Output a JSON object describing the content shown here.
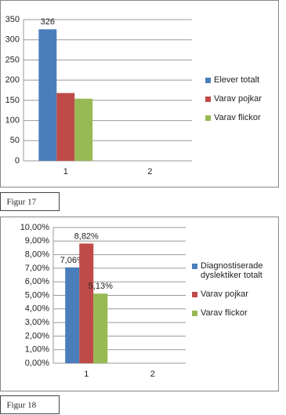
{
  "chart_data": [
    {
      "type": "bar",
      "caption": "Figur 17",
      "categories": [
        "1",
        "2"
      ],
      "series": [
        {
          "name": "Elever totalt",
          "color": "#4a7ebb",
          "values": [
            326,
            null
          ],
          "value_labels": [
            "326",
            null
          ]
        },
        {
          "name": "Varav pojkar",
          "color": "#be4b48",
          "values": [
            168,
            null
          ]
        },
        {
          "name": "Varav flickor",
          "color": "#98b954",
          "values": [
            154,
            null
          ]
        }
      ],
      "ylim": [
        0,
        350
      ],
      "yticks": [
        0,
        50,
        100,
        150,
        200,
        250,
        300,
        350
      ],
      "grid": true
    },
    {
      "type": "bar",
      "caption": "Figur 18",
      "categories": [
        "1",
        "2"
      ],
      "series": [
        {
          "name": "Diagnostiserade dyslektiker  totalt",
          "color": "#4a7ebb",
          "values": [
            7.06,
            null
          ],
          "value_labels": [
            "7,06%",
            null
          ]
        },
        {
          "name": "Varav pojkar",
          "color": "#be4b48",
          "values": [
            8.82,
            null
          ],
          "value_labels": [
            "8,82%",
            null
          ]
        },
        {
          "name": "Varav flickor",
          "color": "#98b954",
          "values": [
            5.13,
            null
          ],
          "value_labels": [
            "5,13%",
            null
          ]
        }
      ],
      "ylim": [
        0,
        10
      ],
      "yticks": [
        {
          "value": 0,
          "label": "0,00%"
        },
        {
          "value": 1,
          "label": "1,00%"
        },
        {
          "value": 2,
          "label": "2,00%"
        },
        {
          "value": 3,
          "label": "3,00%"
        },
        {
          "value": 4,
          "label": "4,00%"
        },
        {
          "value": 5,
          "label": "5,00%"
        },
        {
          "value": 6,
          "label": "6,00%"
        },
        {
          "value": 7,
          "label": "7,00%"
        },
        {
          "value": 8,
          "label": "8,00%"
        },
        {
          "value": 9,
          "label": "9,00%"
        },
        {
          "value": 10,
          "label": "10,00%"
        }
      ],
      "grid": true
    }
  ]
}
